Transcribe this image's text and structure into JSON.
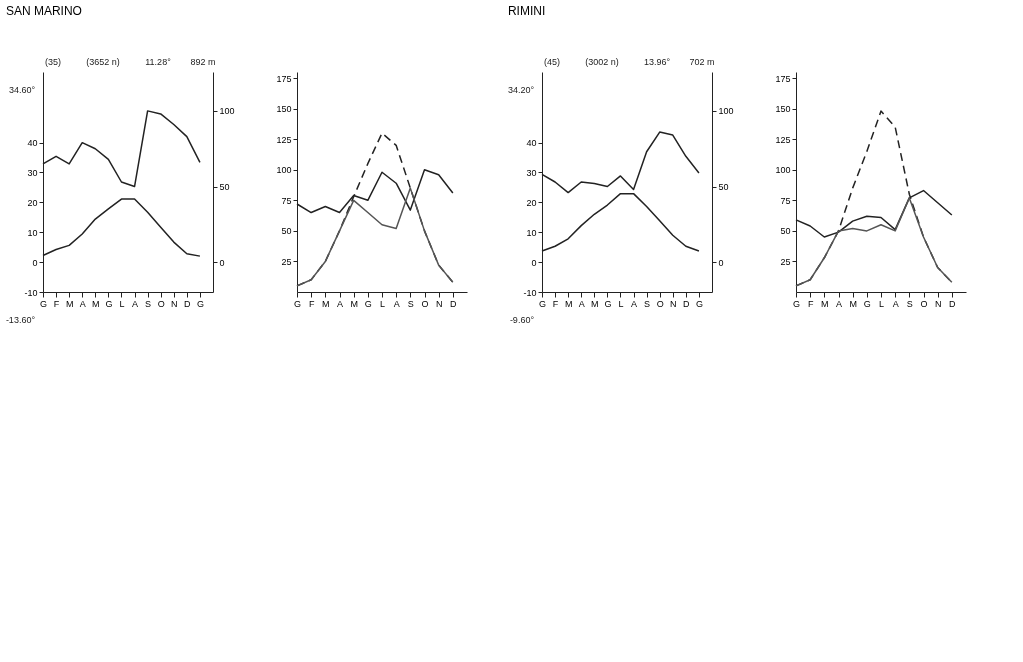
{
  "chart_data": [
    {
      "type": "line",
      "title": "SAN MARINO",
      "categories": [
        "G",
        "F",
        "M",
        "A",
        "M",
        "G",
        "L",
        "A",
        "S",
        "O",
        "N",
        "D",
        "G"
      ],
      "ylim": [
        -10,
        63.6
      ],
      "yticks": [
        -10,
        0,
        10,
        20,
        30,
        40
      ],
      "y2lim": [
        -19.7,
        125.7
      ],
      "y2ticks": [
        0,
        50,
        100
      ],
      "annotations": [
        "(35)",
        "(3652 n)",
        "11.28°",
        "892 m",
        "34.60°",
        "-13.60°"
      ],
      "series": [
        {
          "color": "#222222",
          "values": [
            2.2,
            4.2,
            5.6,
            9.4,
            14.4,
            17.8,
            21.1,
            21.1,
            16.7,
            11.7,
            6.7,
            2.8,
            2.0
          ]
        },
        {
          "color": "#222222",
          "axis": "y2",
          "values": [
            65,
            70,
            65,
            79,
            75,
            68,
            53,
            50,
            100,
            98,
            91,
            83,
            66
          ]
        }
      ]
    },
    {
      "type": "line",
      "categories": [
        "G",
        "F",
        "M",
        "A",
        "M",
        "G",
        "L",
        "A",
        "S",
        "O",
        "N",
        "D"
      ],
      "ylim": [
        0,
        180
      ],
      "yticks": [
        25,
        50,
        75,
        100,
        125,
        150,
        175
      ],
      "series": [
        {
          "color": "#222222",
          "values": [
            72,
            65,
            70,
            65,
            79,
            75,
            98,
            89,
            67,
            100,
            96,
            81
          ]
        },
        {
          "color": "#222222",
          "line_style": "dashed",
          "values": [
            5,
            10,
            25,
            50,
            78,
            105,
            130,
            120,
            85,
            50,
            22,
            8
          ]
        },
        {
          "color": "#555555",
          "values": [
            5,
            10,
            25,
            50,
            75,
            65,
            55,
            52,
            85,
            50,
            22,
            8
          ]
        }
      ]
    },
    {
      "type": "line",
      "title": "RIMINI",
      "categories": [
        "G",
        "F",
        "M",
        "A",
        "M",
        "G",
        "L",
        "A",
        "S",
        "O",
        "N",
        "D",
        "G"
      ],
      "ylim": [
        -10,
        63.6
      ],
      "yticks": [
        -10,
        0,
        10,
        20,
        30,
        40
      ],
      "y2lim": [
        -19.7,
        125.7
      ],
      "y2ticks": [
        0,
        50,
        100
      ],
      "annotations": [
        "(45)",
        "(3002 n)",
        "13.96°",
        "702 m",
        "34.20°",
        "-9.60°"
      ],
      "series": [
        {
          "color": "#222222",
          "values": [
            3.7,
            5.3,
            7.8,
            12.2,
            16.0,
            19.1,
            22.9,
            22.9,
            18.6,
            13.8,
            9.0,
            5.3,
            3.7
          ]
        },
        {
          "color": "#222222",
          "axis": "y2",
          "values": [
            58,
            53,
            46,
            53,
            52,
            50,
            57,
            48,
            73,
            86,
            84,
            70,
            59
          ]
        }
      ]
    },
    {
      "type": "line",
      "categories": [
        "G",
        "F",
        "M",
        "A",
        "M",
        "G",
        "L",
        "A",
        "S",
        "O",
        "N",
        "D"
      ],
      "ylim": [
        0,
        180
      ],
      "yticks": [
        25,
        50,
        75,
        100,
        125,
        150,
        175
      ],
      "series": [
        {
          "color": "#222222",
          "values": [
            59,
            54,
            45,
            49,
            58,
            62,
            61,
            51,
            77,
            83,
            73,
            63
          ]
        },
        {
          "color": "#222222",
          "line_style": "dashed",
          "values": [
            5,
            10,
            28,
            50,
            85,
            115,
            148,
            135,
            80,
            45,
            20,
            8
          ]
        },
        {
          "color": "#555555",
          "values": [
            5,
            10,
            28,
            50,
            52,
            50,
            55,
            50,
            77,
            45,
            20,
            8
          ]
        }
      ]
    }
  ]
}
